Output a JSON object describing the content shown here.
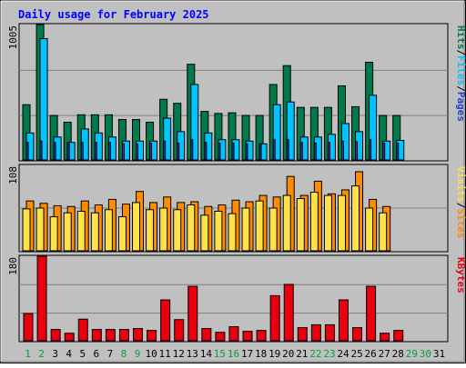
{
  "title": "Daily usage for February 2025",
  "chart_data": [
    {
      "type": "bar",
      "panel": "pages-files-hits",
      "categories": [
        "1",
        "2",
        "3",
        "4",
        "5",
        "6",
        "7",
        "8",
        "9",
        "10",
        "11",
        "12",
        "13",
        "14",
        "15",
        "16",
        "17",
        "18",
        "19",
        "20",
        "21",
        "22",
        "23",
        "24",
        "25",
        "26",
        "27",
        "28",
        "29",
        "30",
        "31"
      ],
      "ymax_label": "1005",
      "ylim": [
        0,
        1005
      ],
      "series": [
        {
          "name": "Hits",
          "color": "#007a4a",
          "values": [
            410,
            1005,
            330,
            280,
            335,
            335,
            335,
            300,
            300,
            280,
            450,
            420,
            710,
            360,
            345,
            350,
            330,
            330,
            560,
            700,
            390,
            390,
            390,
            550,
            395,
            725,
            330,
            330,
            0,
            0,
            0
          ]
        },
        {
          "name": "Files",
          "color": "#00c4ff",
          "values": [
            200,
            900,
            170,
            130,
            230,
            200,
            170,
            140,
            140,
            140,
            310,
            210,
            560,
            200,
            150,
            150,
            140,
            120,
            410,
            430,
            170,
            170,
            190,
            270,
            210,
            480,
            140,
            145,
            0,
            0,
            0
          ]
        },
        {
          "name": "Pages",
          "color": "#1f3fd6",
          "values": [
            130,
            140,
            130,
            120,
            130,
            130,
            130,
            120,
            120,
            125,
            140,
            125,
            150,
            130,
            125,
            125,
            120,
            120,
            150,
            150,
            130,
            125,
            130,
            140,
            135,
            150,
            125,
            125,
            0,
            0,
            0
          ]
        }
      ],
      "ylabel_parts": [
        "Pages",
        "Files",
        "Hits"
      ]
    },
    {
      "type": "bar",
      "panel": "visits-sites",
      "categories": [
        "1",
        "2",
        "3",
        "4",
        "5",
        "6",
        "7",
        "8",
        "9",
        "10",
        "11",
        "12",
        "13",
        "14",
        "15",
        "16",
        "17",
        "18",
        "19",
        "20",
        "21",
        "22",
        "23",
        "24",
        "25",
        "26",
        "27",
        "28",
        "29",
        "30",
        "31"
      ],
      "ymax_label": "108",
      "ylim": [
        0,
        108
      ],
      "series": [
        {
          "name": "Sites",
          "color": "#ff8c00",
          "values": [
            63,
            60,
            57,
            56,
            63,
            58,
            65,
            59,
            75,
            61,
            68,
            61,
            62,
            56,
            58,
            64,
            62,
            70,
            68,
            94,
            70,
            88,
            72,
            77,
            100,
            65,
            56,
            0,
            0,
            0,
            0
          ]
        },
        {
          "name": "Visits",
          "color": "#ffe24a",
          "values": [
            53,
            54,
            43,
            48,
            50,
            48,
            52,
            43,
            61,
            52,
            54,
            52,
            58,
            45,
            50,
            47,
            54,
            63,
            54,
            70,
            66,
            74,
            70,
            70,
            82,
            54,
            48,
            0,
            0,
            0,
            0
          ]
        }
      ],
      "ylabel_parts": [
        "Sites",
        "Visits"
      ]
    },
    {
      "type": "bar",
      "panel": "kbytes",
      "categories": [
        "1",
        "2",
        "3",
        "4",
        "5",
        "6",
        "7",
        "8",
        "9",
        "10",
        "11",
        "12",
        "13",
        "14",
        "15",
        "16",
        "17",
        "18",
        "19",
        "20",
        "21",
        "22",
        "23",
        "24",
        "25",
        "26",
        "27",
        "28",
        "29",
        "30",
        "31"
      ],
      "ymax_label": "180",
      "ylim": [
        0,
        180
      ],
      "series": [
        {
          "name": "KBytes",
          "color": "#e8000f",
          "values": [
            58,
            180,
            24,
            16,
            46,
            24,
            24,
            24,
            26,
            22,
            87,
            45,
            116,
            26,
            18,
            30,
            20,
            22,
            96,
            120,
            28,
            34,
            34,
            87,
            28,
            116,
            16,
            22,
            0,
            0,
            0
          ]
        }
      ],
      "ylabel_parts": [
        "KBytes"
      ]
    }
  ],
  "colors": {
    "background": "#c0c0c0",
    "title": "#0000ff",
    "weekend_label": "#00a040",
    "weekday_label": "#000000",
    "separator": "#808080"
  },
  "weekend_days": [
    1,
    2,
    8,
    9,
    15,
    16,
    22,
    23,
    29,
    30
  ]
}
